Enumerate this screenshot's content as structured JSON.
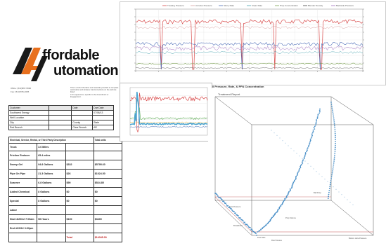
{
  "logo": {
    "line1": "ffordable",
    "line2": "utomation",
    "office": "Office: (513)867-5690",
    "fax": "Fax: (513)705-2635",
    "brand_orange": "#e8701e",
    "brand_dark": "#1a1a1a"
  },
  "notes": {
    "line1": "This is a bill of the labor and materials provided to complete",
    "line2": "automation and wireless interconnections on the well site listed",
    "line3": "in the agreement, specific to the Amendment or Engagement."
  },
  "invoice": {
    "rows": [
      [
        "Customer",
        "",
        "Date",
        "Due Date"
      ],
      [
        "Southwest Energy",
        "",
        "",
        "07/06/13"
      ],
      [
        "Well Location",
        "",
        "",
        ""
      ],
      [
        "City",
        "",
        "County",
        "State"
      ],
      [
        "Red Branch",
        "",
        "Clear Branch",
        "AR"
      ]
    ],
    "items_header": [
      "Electrical, Service, Rental, or Third Party Description",
      "Total units"
    ],
    "items": [
      [
        "Truck",
        "3.6 Miles",
        "",
        ""
      ],
      [
        "Friction Reducer",
        "65.4 miles",
        "",
        ""
      ],
      [
        "Sweep Gel",
        "94.8 Gallons",
        "$332",
        "$5795.60"
      ],
      [
        "Pipe On Pipe",
        "21.3 Gallons",
        "$26",
        "$1024.50"
      ],
      [
        "Scanner",
        "6.8 Gallons",
        "$90",
        "$524.85"
      ],
      [
        "Added Chemical",
        "8 Gallons",
        "$0",
        "$0"
      ],
      [
        "Special",
        "8 Gallons",
        "$0",
        "$0"
      ],
      [
        "Labor",
        "",
        "",
        ""
      ],
      [
        "Start 4/20/12 7:00am",
        "56 Hours",
        "$100",
        "$3400"
      ],
      [
        "End 4/23/12 3:00pm",
        "",
        "",
        ""
      ],
      [
        "",
        "",
        "Total",
        "$14345.00"
      ]
    ]
  },
  "top_chart": {
    "legend": [
      "Treating Pressure",
      "Annulus Pressure",
      "Slurry Rate",
      "Clean Rate",
      "Prop Concentration",
      "Blender Density",
      "Backside Pressure"
    ],
    "colors": [
      "#d84a4a",
      "#d7a0a0",
      "#4f6fb8",
      "#4aa4b0",
      "#7aa050",
      "#444444",
      "#a070c0"
    ],
    "title": "Well Pressure, Rate, & PPA Concentration"
  },
  "mid_chart": {
    "colors": [
      "#d84a4a",
      "#4aa4d0",
      "#5aa850",
      "#e0b030",
      "#3060b0"
    ]
  },
  "chart3d": {
    "title": "Treatment Report",
    "labels": [
      "Frac Pressure",
      "Frac Rate",
      "Fluid Volume",
      "Prop Volume",
      "Bottom Hole Pressure",
      "Ball Drop",
      "Breakdown"
    ],
    "axis_color": "#555555",
    "point_color": "#4a90c8",
    "line_color": "#c05050"
  }
}
